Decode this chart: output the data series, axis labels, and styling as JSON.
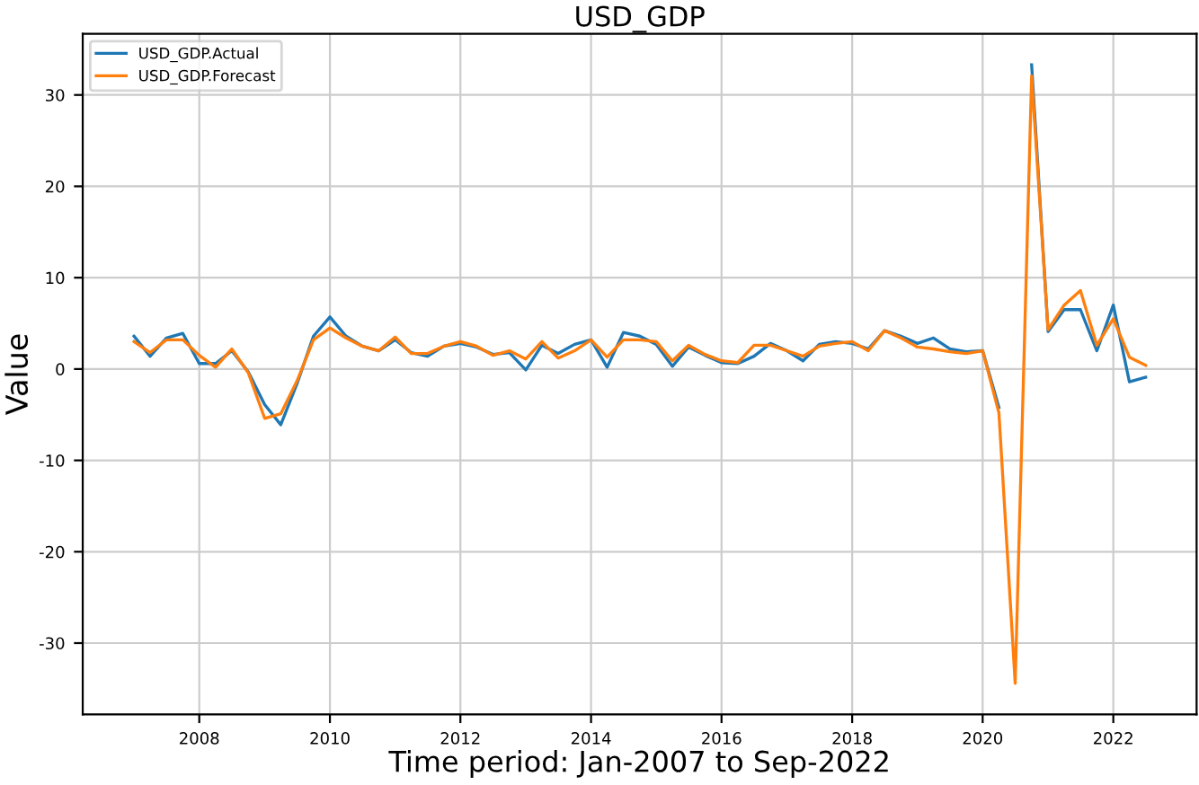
{
  "chart_data": {
    "type": "line",
    "title": "USD_GDP",
    "xlabel": "Time period: Jan-2007 to Sep-2022",
    "ylabel": "Value",
    "x": [
      "2007-01",
      "2007-04",
      "2007-07",
      "2007-10",
      "2008-01",
      "2008-04",
      "2008-07",
      "2008-10",
      "2009-01",
      "2009-04",
      "2009-07",
      "2009-10",
      "2010-01",
      "2010-04",
      "2010-07",
      "2010-10",
      "2011-01",
      "2011-04",
      "2011-07",
      "2011-10",
      "2012-01",
      "2012-04",
      "2012-07",
      "2012-10",
      "2013-01",
      "2013-04",
      "2013-07",
      "2013-10",
      "2014-01",
      "2014-04",
      "2014-07",
      "2014-10",
      "2015-01",
      "2015-04",
      "2015-07",
      "2015-10",
      "2016-01",
      "2016-04",
      "2016-07",
      "2016-10",
      "2017-01",
      "2017-04",
      "2017-07",
      "2017-10",
      "2018-01",
      "2018-04",
      "2018-07",
      "2018-10",
      "2019-01",
      "2019-04",
      "2019-07",
      "2019-10",
      "2020-01",
      "2020-04",
      "2020-07",
      "2020-10",
      "2021-01",
      "2021-04",
      "2021-07",
      "2021-10",
      "2022-01",
      "2022-04",
      "2022-07"
    ],
    "series": [
      {
        "name": "USD_GDP.Actual",
        "color": "#1f77b4",
        "values": [
          3.6,
          1.4,
          3.4,
          3.9,
          0.6,
          0.6,
          2.0,
          -0.3,
          -3.9,
          -6.1,
          -1.6,
          3.6,
          5.7,
          3.6,
          2.5,
          2.0,
          3.2,
          1.8,
          1.4,
          2.5,
          2.8,
          2.4,
          1.6,
          1.8,
          -0.1,
          2.6,
          1.7,
          2.7,
          3.2,
          0.2,
          4.0,
          3.6,
          2.7,
          0.3,
          2.4,
          1.5,
          0.7,
          0.6,
          1.4,
          2.8,
          2.0,
          0.9,
          2.7,
          3.0,
          2.8,
          2.2,
          4.2,
          3.6,
          2.8,
          3.4,
          2.2,
          1.9,
          2.0,
          -4.2,
          null,
          33.3,
          4.1,
          6.5,
          6.5,
          2.0,
          7.0,
          -1.4,
          -0.9
        ]
      },
      {
        "name": "USD_GDP.Forecast",
        "color": "#ff7f0e",
        "values": [
          3.0,
          1.8,
          3.2,
          3.2,
          1.5,
          0.2,
          2.2,
          -0.4,
          -5.4,
          -4.9,
          -1.3,
          3.2,
          4.5,
          3.4,
          2.5,
          2.0,
          3.5,
          1.7,
          1.7,
          2.5,
          3.0,
          2.5,
          1.5,
          2.0,
          1.1,
          3.0,
          1.2,
          2.0,
          3.2,
          1.3,
          3.2,
          3.2,
          3.0,
          0.9,
          2.6,
          1.6,
          0.9,
          0.7,
          2.6,
          2.6,
          2.0,
          1.4,
          2.5,
          2.8,
          3.0,
          2.0,
          4.2,
          3.4,
          2.4,
          2.2,
          1.9,
          1.7,
          2.0,
          -4.8,
          -34.4,
          32.1,
          4.3,
          7.0,
          8.6,
          2.6,
          5.5,
          1.3,
          0.4
        ]
      }
    ],
    "xlim": [
      "2006-03-20",
      "2023-04-12"
    ],
    "xticks": [
      "2008",
      "2010",
      "2012",
      "2014",
      "2016",
      "2018",
      "2020",
      "2022"
    ],
    "ylim": [
      -37.8,
      36.7
    ],
    "yticks": [
      -30,
      -20,
      -10,
      0,
      10,
      20,
      30
    ],
    "grid": true,
    "legend": "top left"
  }
}
